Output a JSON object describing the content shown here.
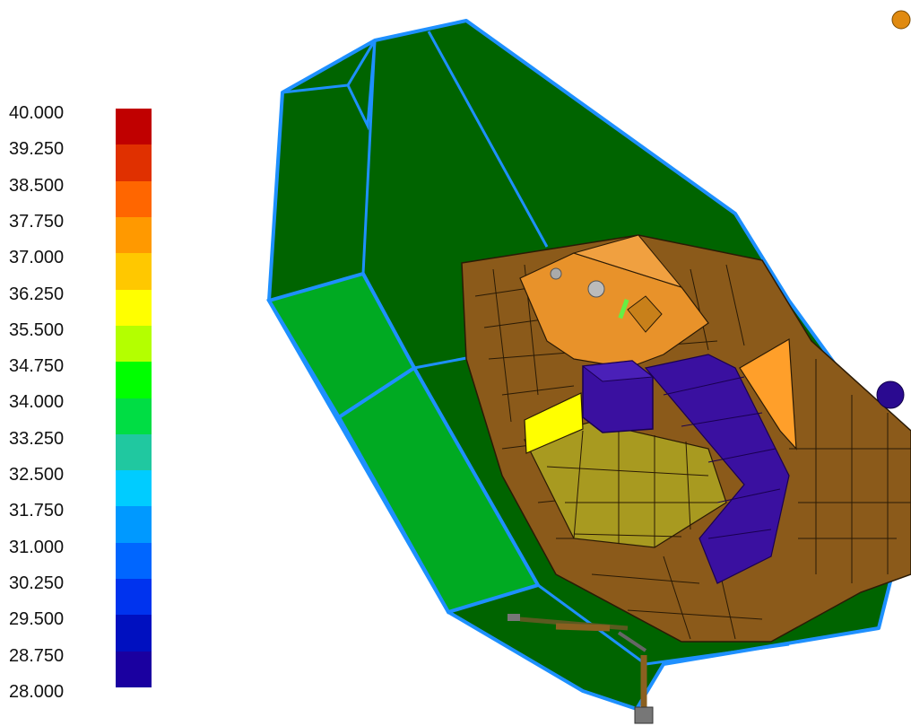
{
  "legend": {
    "values": [
      "40.000",
      "39.250",
      "38.500",
      "37.750",
      "37.000",
      "36.250",
      "35.500",
      "34.750",
      "34.000",
      "33.250",
      "32.500",
      "31.750",
      "31.000",
      "30.250",
      "29.500",
      "28.750",
      "28.000"
    ],
    "bands": [
      "#c00000",
      "#e03000",
      "#ff6600",
      "#ff9900",
      "#ffc800",
      "#ffff00",
      "#b4ff00",
      "#00ff00",
      "#00dd44",
      "#20c8a0",
      "#00ccff",
      "#0099ff",
      "#0066ff",
      "#0033ee",
      "#0010c0",
      "#1a00a0"
    ]
  },
  "scene": {
    "shell_color": "#006400",
    "edge_color": "#1e90ff",
    "panel_color": "#00aa22",
    "brown_color": "#8b5a1a",
    "orange_color": "#ff9f2a",
    "yellow_color": "#ffff00",
    "olive_color": "#a89a20",
    "purple_color": "#3a10a0"
  }
}
